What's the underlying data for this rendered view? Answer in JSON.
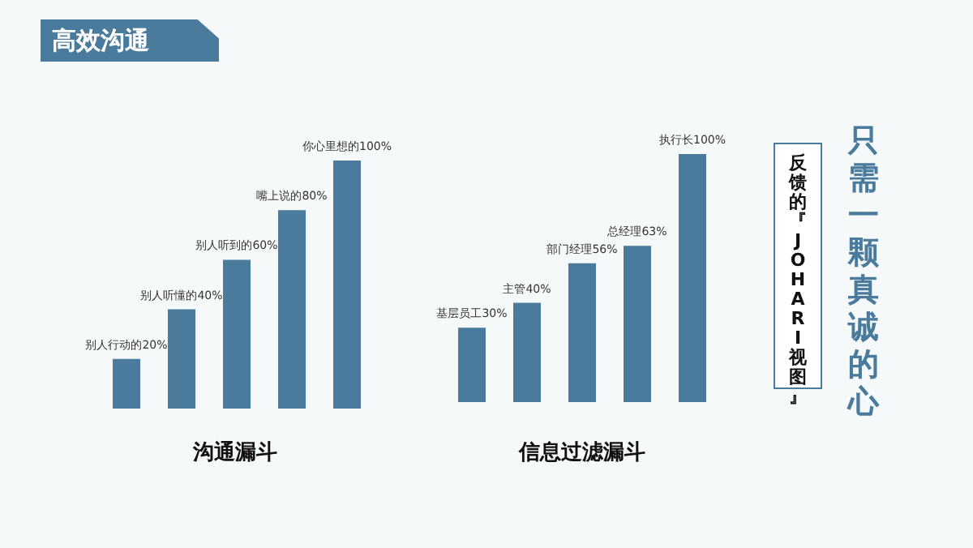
{
  "chart_data": [
    {
      "type": "bar",
      "title": "沟通漏斗",
      "categories": [
        null,
        null,
        null,
        null,
        null
      ],
      "values": [
        20,
        40,
        60,
        80,
        100
      ],
      "value_labels": [
        "别人行动的20%",
        "别人听懂的40%",
        "别人听到的60%",
        "嘴上说的80%",
        "你心里想的100%"
      ],
      "color": "#4a7b9d"
    },
    {
      "type": "bar",
      "title": "信息过滤漏斗",
      "categories": [
        null,
        null,
        null,
        null,
        null
      ],
      "values": [
        30,
        40,
        56,
        63,
        100
      ],
      "value_labels": [
        "基层员工30%",
        "主管40%",
        "部门经理56%",
        "总经理63%",
        "执行长100%"
      ],
      "color": "#4a7b9d"
    },
    {
      "type": "other",
      "title": "高效沟通",
      "annotations": [
        "反馈的『JOHARI视图』",
        "只需一颗真诚的心"
      ]
    }
  ]
}
